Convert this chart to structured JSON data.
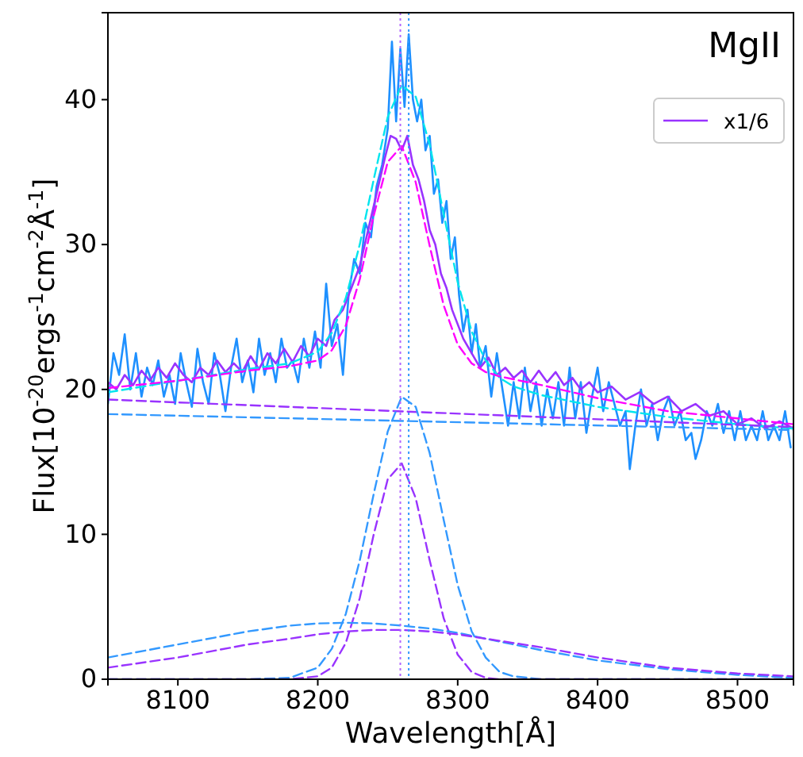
{
  "chart_data": {
    "type": "line",
    "title": "MgII",
    "xlabel": "Wavelength[Å]",
    "ylabel": "Flux[10$^{-20}$ergs$^{-1}$cm$^{-2}$Å$^{-1}$]",
    "xlim": [
      8050,
      8540
    ],
    "xticks": [
      8100,
      8200,
      8300,
      8400,
      8500
    ],
    "ylim": [
      0,
      46
    ],
    "yticks": [
      0,
      10,
      20,
      30,
      40
    ],
    "grid": false,
    "legend": "top right",
    "ref_lines": [
      {
        "axis": "x",
        "value": 8259,
        "color": "#b266ff",
        "line_style": "dotted"
      },
      {
        "axis": "x",
        "value": 8265,
        "color": "#3399ff",
        "line_style": "dotted"
      }
    ],
    "series": [
      {
        "color": "#1e90ff",
        "line_style": "solid",
        "x": [
          8050,
          8054,
          8058,
          8062,
          8066,
          8070,
          8074,
          8078,
          8082,
          8086,
          8090,
          8094,
          8098,
          8102,
          8106,
          8110,
          8114,
          8118,
          8122,
          8126,
          8130,
          8134,
          8138,
          8142,
          8146,
          8150,
          8154,
          8158,
          8162,
          8166,
          8170,
          8174,
          8178,
          8182,
          8186,
          8190,
          8194,
          8198,
          8202,
          8206,
          8210,
          8214,
          8218,
          8222,
          8226,
          8230,
          8234,
          8238,
          8242,
          8246,
          8250,
          8253,
          8256,
          8259,
          8262,
          8265,
          8268,
          8271,
          8274,
          8277,
          8280,
          8283,
          8286,
          8289,
          8292,
          8295,
          8298,
          8301,
          8304,
          8307,
          8310,
          8313,
          8316,
          8320,
          8324,
          8328,
          8332,
          8336,
          8340,
          8344,
          8348,
          8352,
          8356,
          8360,
          8364,
          8368,
          8372,
          8376,
          8380,
          8384,
          8388,
          8392,
          8396,
          8400,
          8404,
          8408,
          8412,
          8416,
          8420,
          8423,
          8427,
          8431,
          8435,
          8439,
          8443,
          8447,
          8451,
          8455,
          8459,
          8463,
          8467,
          8470,
          8474,
          8478,
          8482,
          8486,
          8490,
          8494,
          8498,
          8502,
          8506,
          8510,
          8514,
          8518,
          8522,
          8526,
          8530,
          8534,
          8538
        ],
        "values": [
          19.0,
          22.5,
          21,
          23.8,
          20,
          22.5,
          19.5,
          21.5,
          20.3,
          22,
          19.5,
          21,
          19,
          22.5,
          20.5,
          18.8,
          22.8,
          20.5,
          19,
          22.5,
          21,
          18.5,
          21.5,
          23.5,
          20.5,
          22,
          19.8,
          23.5,
          21,
          22.5,
          20.5,
          23.5,
          21.5,
          22,
          20.5,
          23.5,
          21.5,
          24,
          21.5,
          27.3,
          23,
          24.5,
          21,
          26.5,
          29,
          28,
          31.5,
          30.5,
          34,
          35.5,
          38,
          44,
          38.5,
          43.5,
          39.5,
          44.5,
          40,
          38.5,
          40,
          36.5,
          37.5,
          33.5,
          34.5,
          31.5,
          33,
          29,
          30.5,
          26.5,
          24,
          25.5,
          22.5,
          24.5,
          21.5,
          23,
          19.5,
          22.5,
          20,
          17.5,
          20.5,
          18,
          21.5,
          18.5,
          20.5,
          17.5,
          20,
          18,
          20.5,
          17.5,
          21.5,
          18,
          20.5,
          17,
          19.5,
          21.5,
          18.5,
          20.5,
          19,
          17.5,
          18.5,
          14.5,
          17.5,
          20,
          17.5,
          19,
          16.5,
          18.5,
          19.5,
          17.5,
          18.5,
          16.5,
          17,
          15.2,
          16.5,
          18.5,
          17.5,
          19,
          17,
          18.5,
          16.5,
          18.5,
          16.5,
          17.5,
          16.5,
          18.5,
          16.5,
          17.5,
          16.5,
          18.5,
          16
        ]
      },
      {
        "name": "x1/6",
        "color": "#9933ff",
        "line_style": "solid",
        "x": [
          8050,
          8056,
          8062,
          8068,
          8074,
          8080,
          8086,
          8092,
          8098,
          8104,
          8110,
          8116,
          8122,
          8128,
          8134,
          8140,
          8146,
          8152,
          8158,
          8164,
          8170,
          8176,
          8182,
          8188,
          8194,
          8200,
          8206,
          8212,
          8218,
          8224,
          8230,
          8236,
          8242,
          8248,
          8252,
          8256,
          8260,
          8264,
          8268,
          8272,
          8276,
          8280,
          8284,
          8288,
          8292,
          8296,
          8300,
          8304,
          8310,
          8316,
          8322,
          8328,
          8334,
          8340,
          8346,
          8352,
          8358,
          8364,
          8370,
          8376,
          8382,
          8388,
          8394,
          8400,
          8410,
          8420,
          8430,
          8440,
          8450,
          8460,
          8470,
          8480,
          8490,
          8500,
          8510,
          8520,
          8530,
          8540
        ],
        "values": [
          20.5,
          20,
          21,
          20.3,
          21.3,
          20.6,
          21.5,
          20.8,
          21.8,
          21,
          20.5,
          21.5,
          21,
          22,
          21.2,
          21.8,
          21.2,
          22.3,
          21.4,
          22.5,
          21.8,
          22.8,
          21.9,
          23,
          22.3,
          23.5,
          23,
          24.8,
          25.5,
          27,
          28.5,
          31,
          33.5,
          36,
          37.5,
          37.3,
          36.5,
          37.5,
          35.5,
          34.5,
          33,
          31,
          30,
          28,
          27,
          25.5,
          24.5,
          23.5,
          22.5,
          21.5,
          22.2,
          21,
          21.5,
          20.8,
          21.3,
          20.5,
          21.3,
          20.5,
          21.2,
          20.3,
          20.8,
          20,
          20.5,
          19.8,
          20.2,
          19.3,
          19.8,
          19,
          19.5,
          18.5,
          19,
          18.2,
          18.5,
          17.6,
          18,
          17.3,
          17.8,
          17.3
        ]
      },
      {
        "color": "#00e5ee",
        "line_style": "dashed",
        "x": [
          8050,
          8100,
          8150,
          8180,
          8200,
          8210,
          8220,
          8230,
          8240,
          8250,
          8260,
          8270,
          8280,
          8290,
          8300,
          8310,
          8320,
          8330,
          8340,
          8360,
          8400,
          8450,
          8500,
          8540
        ],
        "values": [
          19.8,
          20.6,
          21.4,
          21.8,
          22.6,
          23.9,
          26.3,
          30.0,
          34.5,
          38.8,
          41.0,
          40.2,
          36.9,
          32.1,
          27.4,
          24.0,
          22.0,
          20.8,
          20.2,
          19.6,
          18.8,
          18.1,
          17.6,
          17.3
        ]
      },
      {
        "color": "#ff00ff",
        "line_style": "dashed",
        "x": [
          8050,
          8100,
          8150,
          8180,
          8200,
          8210,
          8220,
          8230,
          8240,
          8250,
          8260,
          8270,
          8280,
          8290,
          8300,
          8310,
          8320,
          8330,
          8340,
          8360,
          8400,
          8450,
          8500,
          8540
        ],
        "values": [
          20.1,
          20.6,
          21.3,
          21.6,
          22.0,
          22.7,
          24.4,
          27.6,
          32.0,
          35.7,
          36.8,
          34.3,
          29.9,
          25.8,
          23.1,
          21.8,
          21.2,
          20.9,
          20.7,
          20.3,
          19.4,
          18.5,
          18.0,
          17.6
        ]
      },
      {
        "color": "#3399ff",
        "line_style": "dashed",
        "x": [
          8050,
          8540
        ],
        "values": [
          18.3,
          17.2
        ]
      },
      {
        "color": "#9933ff",
        "line_style": "dashed",
        "x": [
          8050,
          8540
        ],
        "values": [
          19.3,
          17.4
        ]
      },
      {
        "color": "#3399ff",
        "line_style": "dashed",
        "x": [
          8050,
          8150,
          8180,
          8200,
          8210,
          8220,
          8230,
          8240,
          8250,
          8260,
          8270,
          8280,
          8290,
          8300,
          8310,
          8320,
          8330,
          8340,
          8360,
          8540
        ],
        "values": [
          0,
          0,
          0.1,
          0.8,
          2.1,
          4.5,
          8.2,
          12.8,
          17.1,
          19.5,
          18.8,
          15.6,
          11.0,
          6.5,
          3.3,
          1.5,
          0.5,
          0.2,
          0,
          0
        ]
      },
      {
        "color": "#9933ff",
        "line_style": "dashed",
        "x": [
          8050,
          8180,
          8200,
          8210,
          8220,
          8230,
          8240,
          8250,
          8260,
          8270,
          8280,
          8290,
          8300,
          8310,
          8320,
          8330,
          8540
        ],
        "values": [
          0,
          0,
          0.2,
          0.8,
          2.5,
          5.6,
          10.0,
          13.8,
          14.9,
          12.5,
          8.2,
          4.2,
          1.7,
          0.5,
          0.1,
          0,
          0
        ]
      },
      {
        "color": "#3399ff",
        "line_style": "dashed",
        "x": [
          8050,
          8100,
          8150,
          8180,
          8200,
          8220,
          8240,
          8260,
          8280,
          8300,
          8320,
          8340,
          8360,
          8400,
          8450,
          8500,
          8540
        ],
        "values": [
          1.5,
          2.4,
          3.3,
          3.7,
          3.85,
          3.9,
          3.85,
          3.7,
          3.5,
          3.2,
          2.8,
          2.4,
          2.0,
          1.3,
          0.7,
          0.3,
          0.1
        ]
      },
      {
        "color": "#9933ff",
        "line_style": "dashed",
        "x": [
          8050,
          8100,
          8150,
          8180,
          8200,
          8220,
          8240,
          8260,
          8280,
          8300,
          8320,
          8340,
          8360,
          8400,
          8450,
          8500,
          8540
        ],
        "values": [
          0.8,
          1.5,
          2.4,
          2.8,
          3.1,
          3.3,
          3.4,
          3.4,
          3.3,
          3.1,
          2.8,
          2.5,
          2.2,
          1.5,
          0.8,
          0.4,
          0.2
        ]
      }
    ]
  }
}
